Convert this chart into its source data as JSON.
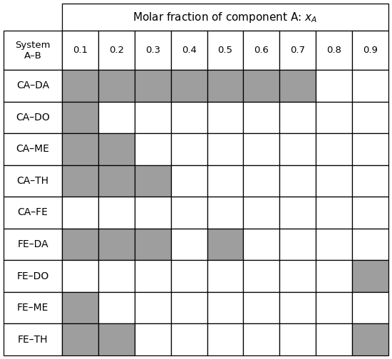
{
  "col_values": [
    "0.1",
    "0.2",
    "0.3",
    "0.4",
    "0.5",
    "0.6",
    "0.7",
    "0.8",
    "0.9"
  ],
  "rows": [
    "CA–DA",
    "CA–DO",
    "CA–ME",
    "CA–TH",
    "CA–FE",
    "FE–DA",
    "FE–DO",
    "FE–ME",
    "FE–TH"
  ],
  "shaded": [
    [
      1,
      1,
      1,
      1,
      1,
      1,
      1,
      0,
      0
    ],
    [
      1,
      0,
      0,
      0,
      0,
      0,
      0,
      0,
      0
    ],
    [
      1,
      1,
      0,
      0,
      0,
      0,
      0,
      0,
      0
    ],
    [
      1,
      1,
      1,
      0,
      0,
      0,
      0,
      0,
      0
    ],
    [
      0,
      0,
      0,
      0,
      0,
      0,
      0,
      0,
      0
    ],
    [
      1,
      1,
      1,
      0,
      1,
      0,
      0,
      0,
      0
    ],
    [
      0,
      0,
      0,
      0,
      0,
      0,
      0,
      0,
      1
    ],
    [
      1,
      0,
      0,
      0,
      0,
      0,
      0,
      0,
      0
    ],
    [
      1,
      1,
      0,
      0,
      0,
      0,
      0,
      0,
      1
    ]
  ],
  "gray_color": "#9e9e9e",
  "white_color": "#ffffff",
  "border_color": "#000000",
  "background_color": "#ffffff",
  "title_fontsize": 11,
  "cell_fontsize": 9.5,
  "row_label_fontsize": 10,
  "system_label_fontsize": 9.5
}
